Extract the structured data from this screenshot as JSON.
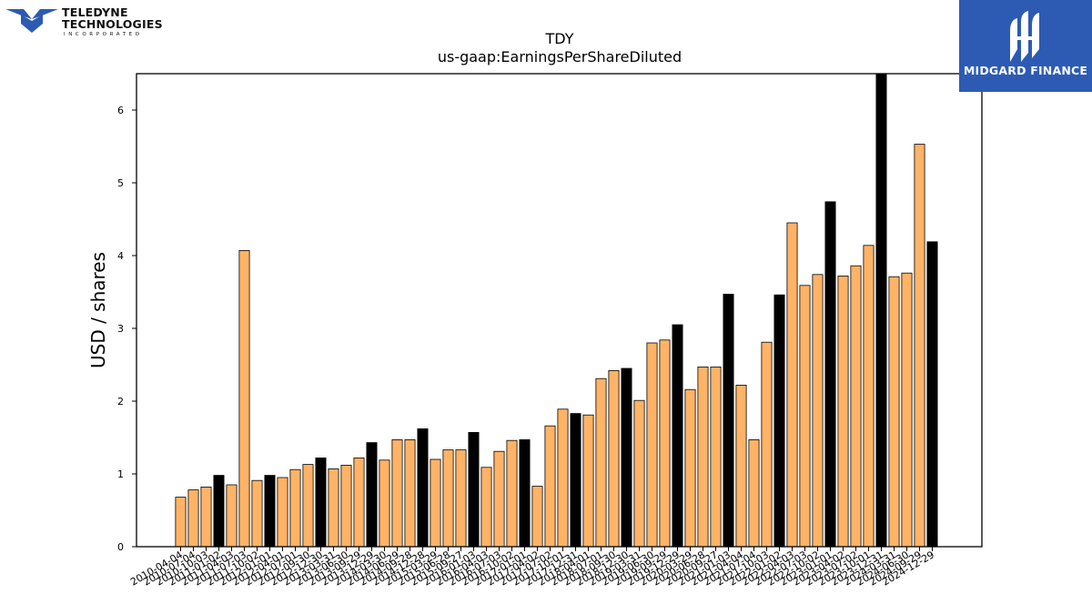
{
  "company_logo": {
    "line1": "TELEDYNE",
    "line2": "TECHNOLOGIES",
    "line3": "INCORPORATED",
    "icon": "teledyne-logo-icon"
  },
  "sponsor_logo": {
    "text": "MIDGARD FINANCE",
    "icon": "midgard-logo-icon",
    "background": "#2d5bb3"
  },
  "colors": {
    "quarterly": "#ffb366",
    "annual": "#000000",
    "edge": "#000000"
  },
  "chart_data": {
    "type": "bar",
    "title": "TDY",
    "subtitle": "us-gaap:EarningsPerShareDiluted",
    "xlabel": "",
    "ylabel": "USD / shares",
    "ylim": [
      0,
      6.5
    ],
    "yticks": [
      "0",
      "1",
      "2",
      "3",
      "4",
      "5",
      "6"
    ],
    "grid": false,
    "legend": "none",
    "categories": [
      "2010-04-04",
      "2010-07-04",
      "2010-10-03",
      "2011-01-02",
      "2011-04-03",
      "2011-07-03",
      "2011-10-02",
      "2012-01-01",
      "2012-04-01",
      "2012-07-01",
      "2012-09-30",
      "2012-12-30",
      "2013-03-31",
      "2013-06-30",
      "2013-09-29",
      "2013-12-29",
      "2014-03-30",
      "2014-06-29",
      "2014-09-28",
      "2014-12-28",
      "2015-03-29",
      "2015-06-28",
      "2015-09-27",
      "2016-01-03",
      "2016-04-03",
      "2016-07-03",
      "2016-10-02",
      "2017-01-01",
      "2017-04-02",
      "2017-07-02",
      "2017-10-01",
      "2017-12-31",
      "2018-04-01",
      "2018-07-01",
      "2018-09-30",
      "2018-12-30",
      "2019-03-31",
      "2019-06-30",
      "2019-09-29",
      "2019-12-29",
      "2020-03-29",
      "2020-06-28",
      "2020-09-27",
      "2021-01-03",
      "2021-04-04",
      "2021-07-04",
      "2021-10-03",
      "2022-01-02",
      "2022-04-03",
      "2022-07-03",
      "2022-10-02",
      "2023-01-01",
      "2023-04-02",
      "2023-07-02",
      "2023-10-01",
      "2023-12-31",
      "2024-03-31",
      "2024-06-30",
      "2024-09-29",
      "2024-12-29"
    ],
    "x_tick_labels": [
      "2010-04-04",
      "2010-07-04",
      "2010-10-03",
      "2011-01-02",
      "2011-04-03",
      "2011-07-03",
      "2011-10-02",
      "2012-01-01",
      "2012-04-01",
      "2012-07-01",
      "2012-09-30",
      "2012-12-30",
      "2013-03-31",
      "2013-06-30",
      "2013-09-29",
      "2013-12-29",
      "2014-03-30",
      "2014-06-29",
      "2014-09-28",
      "2014-12-28",
      "2015-03-29",
      "2015-06-28",
      "2015-09-27",
      "2016-01-03",
      "2016-04-03",
      "2016-07-03",
      "2016-10-02",
      "2017-01-01",
      "2017-04-02",
      "2017-07-02",
      "2017-10-01",
      "2017-12-31",
      "2018-04-01",
      "2018-07-01",
      "2018-09-30",
      "2018-12-30",
      "2019-03-31",
      "2019-06-30",
      "2019-09-29",
      "2019-12-29",
      "2020-03-29",
      "2020-06-28",
      "2020-09-27",
      "2021-01-03",
      "2021-04-04",
      "2021-07-04",
      "2021-10-03",
      "2022-01-02",
      "2022-04-03",
      "2022-07-03",
      "2022-10-02",
      "2023-01-01",
      "2023-04-02",
      "2023-07-02",
      "2023-10-01",
      "2023-12-31",
      "2024-03-31",
      "2024-06-30",
      "2024-09-29",
      "2024-12-29"
    ],
    "values": [
      0.68,
      0.78,
      0.82,
      0.98,
      0.85,
      4.07,
      0.91,
      0.98,
      0.95,
      1.06,
      1.13,
      1.22,
      1.07,
      1.12,
      1.22,
      1.43,
      1.19,
      1.47,
      1.47,
      1.62,
      1.2,
      1.33,
      1.33,
      1.57,
      1.09,
      1.31,
      1.46,
      1.47,
      0.83,
      1.66,
      1.89,
      1.83,
      1.81,
      2.31,
      2.42,
      2.45,
      2.01,
      2.8,
      2.84,
      3.05,
      2.16,
      2.47,
      2.47,
      3.47,
      2.22,
      1.47,
      2.81,
      3.46,
      4.45,
      3.59,
      3.74,
      4.74,
      3.72,
      3.86,
      4.14,
      6.54,
      3.71,
      3.76,
      5.53,
      4.19
    ],
    "annual_flags": [
      false,
      false,
      false,
      true,
      false,
      false,
      false,
      true,
      false,
      false,
      false,
      true,
      false,
      false,
      false,
      true,
      false,
      false,
      false,
      true,
      false,
      false,
      false,
      true,
      false,
      false,
      false,
      true,
      false,
      false,
      false,
      true,
      false,
      false,
      false,
      true,
      false,
      false,
      false,
      true,
      false,
      false,
      false,
      true,
      false,
      false,
      false,
      true,
      false,
      false,
      false,
      true,
      false,
      false,
      false,
      true,
      false,
      false,
      false,
      true
    ]
  }
}
